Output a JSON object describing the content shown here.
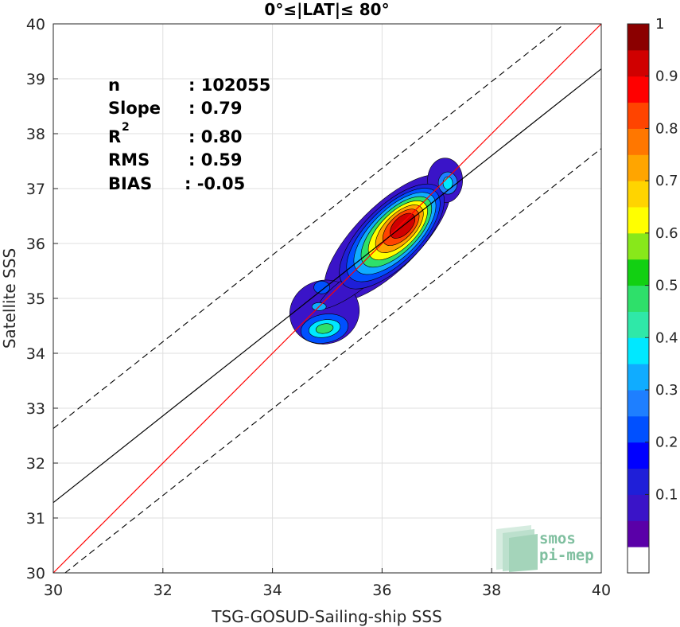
{
  "chart_data": {
    "type": "contour",
    "title": "0°≤|LAT|≤ 80°",
    "xlabel": "TSG-GOSUD-Sailing-ship SSS",
    "ylabel": "Satellite SSS",
    "xlim": [
      30,
      40
    ],
    "ylim": [
      30,
      40
    ],
    "xticks": [
      "30",
      "32",
      "34",
      "36",
      "38",
      "40"
    ],
    "yticks": [
      "30",
      "31",
      "32",
      "33",
      "34",
      "35",
      "36",
      "37",
      "38",
      "39",
      "40"
    ],
    "grid": true,
    "stats": [
      {
        "label": "n",
        "value": ": 102055"
      },
      {
        "label": "Slope",
        "value": ": 0.79"
      },
      {
        "label": "R",
        "sup": "2",
        "value": ": 0.80"
      },
      {
        "label": "RMS",
        "value": ": 0.59"
      },
      {
        "label": "BIAS",
        "value": ": -0.05"
      }
    ],
    "lines": {
      "identity": {
        "slope": 1,
        "intercept": 0,
        "color": "#ff0000"
      },
      "fit": {
        "slope": 0.79,
        "intercept": 7.58,
        "color": "#000000"
      },
      "upper_bound": {
        "slope": 0.79,
        "intercept": 8.93,
        "style": "dashed"
      },
      "lower_bound": {
        "slope": 0.79,
        "intercept": 6.13,
        "style": "dashed"
      }
    },
    "density_peaks": [
      {
        "x": 36.4,
        "y": 36.35,
        "density": 1.0
      },
      {
        "x": 37.2,
        "y": 37.1,
        "density": 0.4
      },
      {
        "x": 34.95,
        "y": 34.45,
        "density": 0.5
      },
      {
        "x": 34.9,
        "y": 35.2,
        "density": 0.2
      }
    ],
    "colorbar": {
      "ticks": [
        "0.1",
        "0.2",
        "0.3",
        "0.4",
        "0.5",
        "0.6",
        "0.7",
        "0.8",
        "0.9",
        "1"
      ],
      "colors": [
        "#ffffff",
        "#5a00a8",
        "#3a14c8",
        "#1f1fd8",
        "#0000ff",
        "#0050ff",
        "#1e7fff",
        "#10acff",
        "#00e8ff",
        "#2fe8a8",
        "#2ee06a",
        "#12d012",
        "#88e81a",
        "#ffff00",
        "#ffd400",
        "#ffa500",
        "#ff7700",
        "#ff4400",
        "#ff0000",
        "#d00000",
        "#8b0000"
      ]
    },
    "watermark": [
      "smos",
      "pi-mep"
    ]
  }
}
